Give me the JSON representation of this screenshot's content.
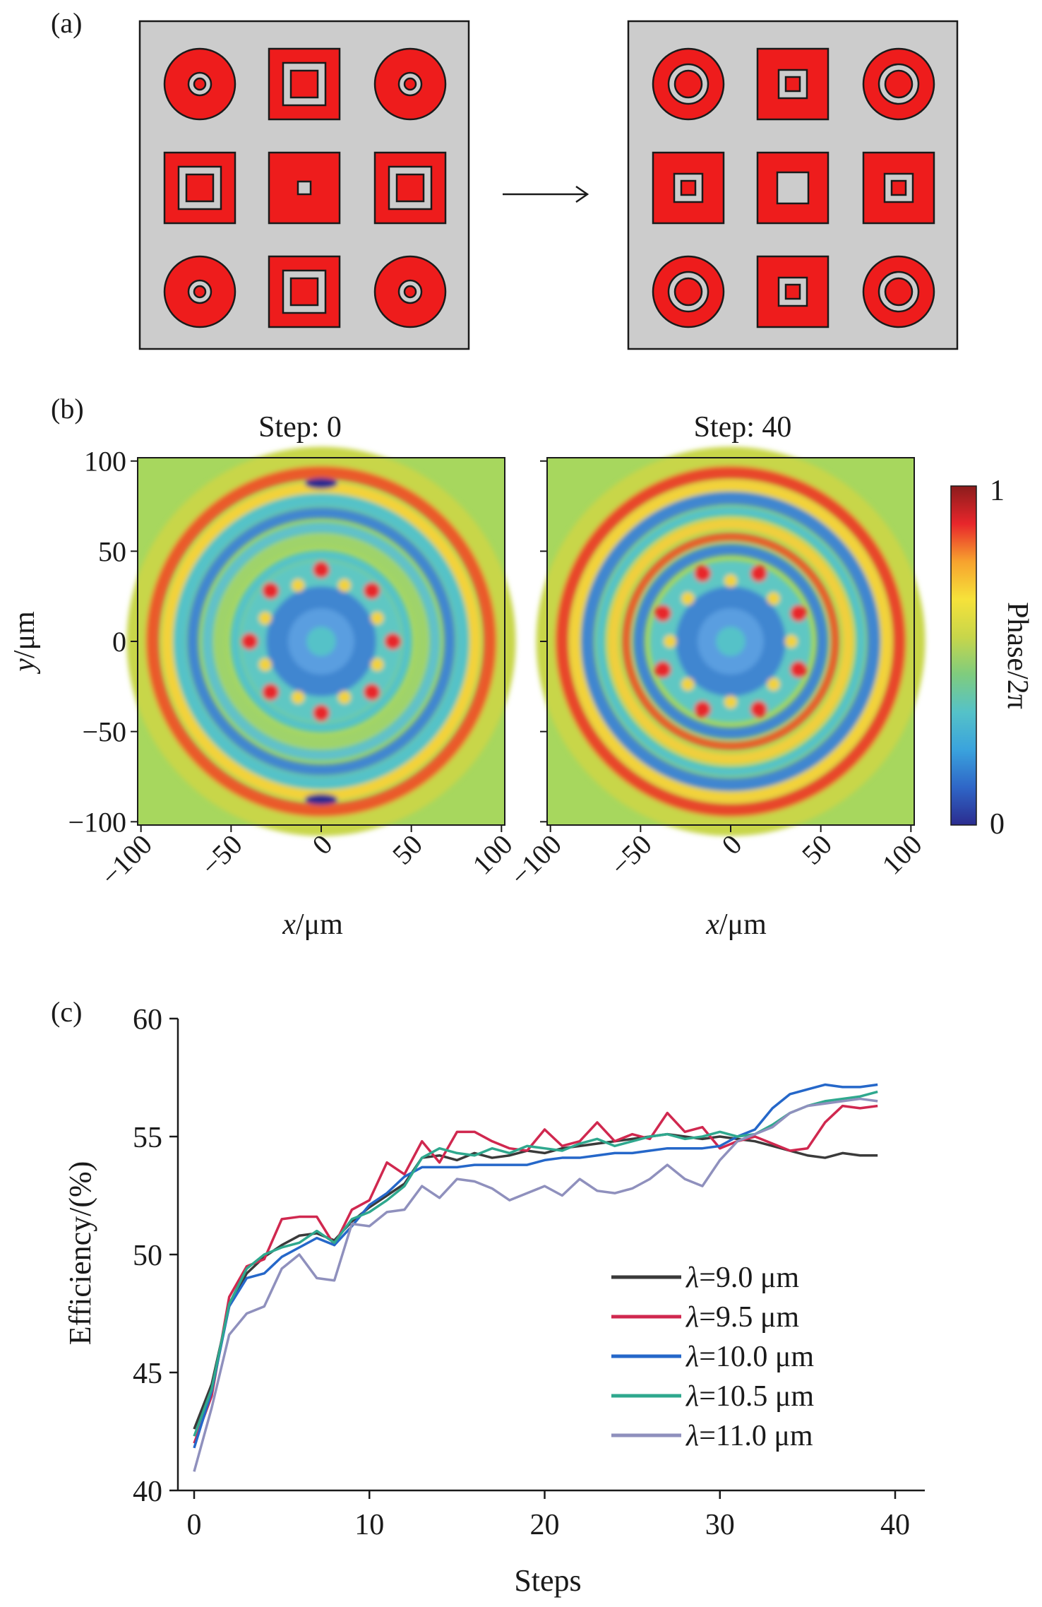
{
  "panel_a": {
    "label": "(a)",
    "colors": {
      "background": "#cccccc",
      "cell": "#ee1c1c",
      "outline": "#1a1a1a"
    },
    "before": [
      "ring-small",
      "square-large",
      "ring-small",
      "square-large",
      "square-tiny",
      "square-large",
      "ring-small",
      "square-large",
      "ring-small"
    ],
    "after": [
      "ring-medium",
      "square-small",
      "ring-medium",
      "square-small",
      "square-hollow",
      "square-small",
      "ring-medium",
      "square-small",
      "ring-medium"
    ]
  },
  "panel_b": {
    "label": "(b)",
    "maps": [
      {
        "title": "Step: 0"
      },
      {
        "title": "Step: 40"
      }
    ],
    "xlabel_italic": "x",
    "xlabel_unit": "/μm",
    "ylabel_italic": "y",
    "ylabel_unit": "/μm",
    "x_ticks": [
      "−100",
      "−50",
      "0",
      "50",
      "100"
    ],
    "y_ticks": [
      "100",
      "50",
      "0",
      "−50",
      "−100"
    ],
    "colorbar": {
      "label": "Phase/2π",
      "max_label": "1",
      "min_label": "0"
    },
    "colormap": [
      "#2b2c8f",
      "#2f66c7",
      "#3aa3dd",
      "#55c2c8",
      "#7fcc7e",
      "#c8d64a",
      "#f6e23a",
      "#f7a22e",
      "#e8262b",
      "#8b1c1c"
    ]
  },
  "chart_data": {
    "type": "line",
    "panel_label": "(c)",
    "xlabel": "Steps",
    "ylabel": "Efficiency/(%)",
    "xlim": [
      0,
      40
    ],
    "ylim": [
      40,
      60
    ],
    "x_ticks": [
      0,
      10,
      20,
      30,
      40
    ],
    "y_ticks": [
      40,
      45,
      50,
      55,
      60
    ],
    "legend_position": "bottom-right",
    "series": [
      {
        "name": "λ=9.0 μm",
        "color": "#3a3a3a",
        "values": [
          42.6,
          44.5,
          47.8,
          49.2,
          49.9,
          50.4,
          50.8,
          50.9,
          50.6,
          51.4,
          52.0,
          52.5,
          53.0,
          54.1,
          54.2,
          54.0,
          54.3,
          54.1,
          54.2,
          54.4,
          54.3,
          54.5,
          54.6,
          54.7,
          54.8,
          54.9,
          55.0,
          55.1,
          55.0,
          54.9,
          55.0,
          54.9,
          54.8,
          54.6,
          54.4,
          54.2,
          54.1,
          54.3,
          54.2,
          54.2
        ]
      },
      {
        "name": "λ=9.5 μm",
        "color": "#d0284f",
        "values": [
          42.0,
          44.0,
          48.2,
          49.5,
          49.8,
          51.5,
          51.6,
          51.6,
          50.4,
          51.9,
          52.3,
          53.9,
          53.4,
          54.8,
          53.9,
          55.2,
          55.2,
          54.8,
          54.5,
          54.4,
          55.3,
          54.6,
          54.8,
          55.6,
          54.8,
          55.1,
          54.9,
          56.0,
          55.2,
          55.4,
          54.5,
          54.8,
          55.0,
          54.7,
          54.4,
          54.5,
          55.6,
          56.3,
          56.2,
          56.3
        ]
      },
      {
        "name": "λ=10.0 μm",
        "color": "#2567c9",
        "values": [
          41.8,
          44.2,
          47.8,
          49.0,
          49.2,
          49.9,
          50.3,
          50.7,
          50.4,
          51.2,
          52.1,
          52.6,
          53.3,
          53.7,
          53.7,
          53.7,
          53.8,
          53.8,
          53.8,
          53.8,
          54.0,
          54.1,
          54.1,
          54.2,
          54.3,
          54.3,
          54.4,
          54.5,
          54.5,
          54.5,
          54.6,
          55.0,
          55.3,
          56.2,
          56.8,
          57.0,
          57.2,
          57.1,
          57.1,
          57.2
        ]
      },
      {
        "name": "λ=10.5 μm",
        "color": "#2fa88e",
        "values": [
          42.3,
          44.3,
          47.9,
          49.4,
          50.0,
          50.3,
          50.5,
          51.0,
          50.5,
          51.5,
          51.8,
          52.3,
          52.9,
          54.1,
          54.5,
          54.3,
          54.2,
          54.5,
          54.3,
          54.6,
          54.5,
          54.4,
          54.7,
          54.9,
          54.6,
          54.8,
          55.0,
          55.1,
          54.9,
          55.0,
          55.2,
          55.0,
          55.1,
          55.5,
          56.0,
          56.3,
          56.5,
          56.6,
          56.7,
          56.9
        ]
      },
      {
        "name": "λ=11.0 μm",
        "color": "#8f90bd",
        "values": [
          40.8,
          43.5,
          46.6,
          47.5,
          47.8,
          49.4,
          50.0,
          49.0,
          48.9,
          51.3,
          51.2,
          51.8,
          51.9,
          52.9,
          52.4,
          53.2,
          53.1,
          52.8,
          52.3,
          52.6,
          52.9,
          52.5,
          53.2,
          52.7,
          52.6,
          52.8,
          53.2,
          53.8,
          53.2,
          52.9,
          54.0,
          54.8,
          55.1,
          55.4,
          56.0,
          56.3,
          56.4,
          56.5,
          56.6,
          56.5
        ]
      }
    ]
  }
}
